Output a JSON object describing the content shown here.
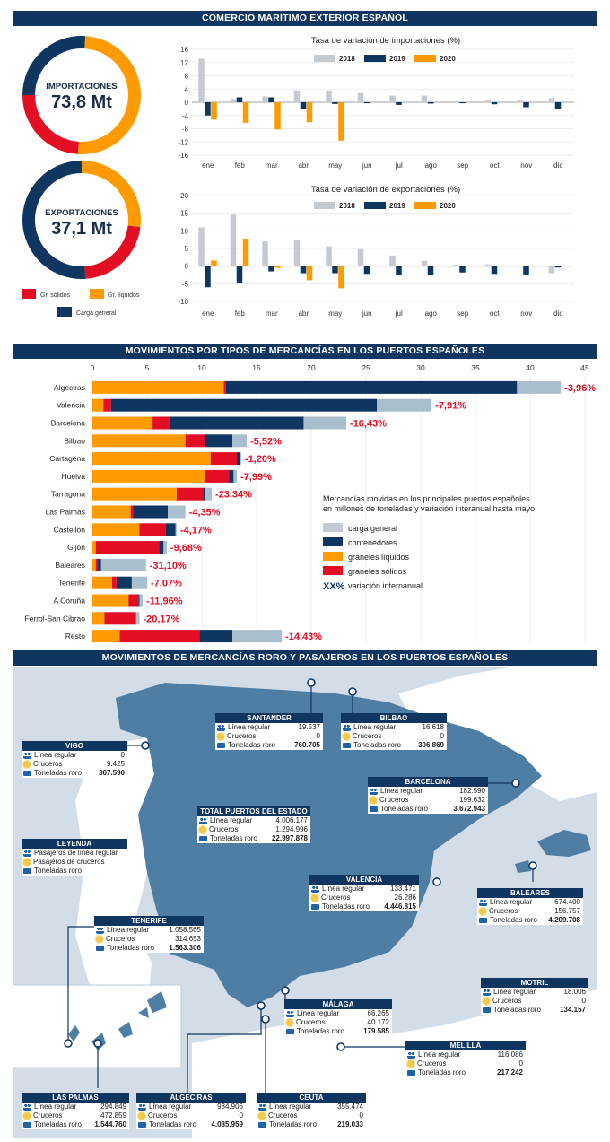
{
  "sections": {
    "top": "COMERCIO MARÍTIMO EXTERIOR ESPAÑOL",
    "middle": "MOVIMIENTOS POR TIPOS DE MERCANCÍAS EN LOS PUERTOS ESPAÑOLES",
    "bottom": "MOVIMIENTOS DE MERCANCÍAS RORO Y PASAJEROS EN LOS PUERTOS ESPAÑOLES"
  },
  "colors": {
    "navy": "#0f3561",
    "red": "#e30e24",
    "orange": "#ff9a00",
    "grey": "#c5cad0",
    "lightblue": "#a9bfce",
    "land": "#4e7ea4",
    "sea": "#d2dde7"
  },
  "donuts": {
    "legend": [
      "Gr. sólidos",
      "Gr. líquidos",
      "Carga general"
    ],
    "importaciones": {
      "label": "IMPORTACIONES",
      "value": "73,8 Mt"
    },
    "exportaciones": {
      "label": "EXPORTACIONES",
      "value": "37,1 Mt"
    }
  },
  "chart_data": [
    {
      "type": "pie",
      "title": "IMPORTACIONES 73,8 Mt",
      "categories": [
        "Gr. sólidos",
        "Gr. líquidos",
        "Carga general"
      ],
      "values": [
        24,
        50,
        26
      ]
    },
    {
      "type": "pie",
      "title": "EXPORTACIONES 37,1 Mt",
      "categories": [
        "Gr. sólidos",
        "Gr. líquidos",
        "Carga general"
      ],
      "values": [
        22,
        27,
        51
      ]
    },
    {
      "type": "bar",
      "title": "Tasa de variación de importaciones (%)",
      "categories": [
        "ene",
        "feb",
        "mar",
        "abr",
        "may",
        "jun",
        "jul",
        "ago",
        "sep",
        "oct",
        "nov",
        "dic"
      ],
      "yticks": [
        "16",
        "12",
        "8",
        "4",
        "0",
        "-4",
        "-8",
        "-12",
        "-16"
      ],
      "ylim": [
        -16,
        16
      ],
      "series": [
        {
          "name": "2018",
          "values": [
            13.2,
            1.0,
            1.8,
            3.6,
            3.6,
            2.8,
            2.0,
            2.0,
            0.3,
            0.8,
            0.5,
            1.2
          ]
        },
        {
          "name": "2019",
          "values": [
            -4.0,
            1.5,
            1.5,
            -2.0,
            -0.5,
            -0.3,
            -0.8,
            -0.4,
            -0.3,
            -0.6,
            -1.5,
            -2.0
          ]
        },
        {
          "name": "2020",
          "values": [
            -5.2,
            -6.2,
            -8.2,
            -6.0,
            -11.6,
            null,
            null,
            null,
            null,
            null,
            null,
            null
          ]
        }
      ]
    },
    {
      "type": "bar",
      "title": "Tasa de variación de exportaciones (%)",
      "categories": [
        "ene",
        "feb",
        "mar",
        "abr",
        "may",
        "jun",
        "jul",
        "ago",
        "sep",
        "oct",
        "nov",
        "dic"
      ],
      "yticks": [
        "20",
        "15",
        "10",
        "5",
        "0",
        "-5",
        "-10"
      ],
      "ylim": [
        -10,
        20
      ],
      "series": [
        {
          "name": "2018",
          "values": [
            11.0,
            14.6,
            7.0,
            7.5,
            5.6,
            4.8,
            3.0,
            1.5,
            0.4,
            0.5,
            0.0,
            -2.0
          ]
        },
        {
          "name": "2019",
          "values": [
            -6.0,
            -4.7,
            -1.5,
            -2.0,
            -2.0,
            -2.2,
            -2.5,
            -2.5,
            -1.8,
            -2.2,
            -2.5,
            -0.4
          ]
        },
        {
          "name": "2020",
          "values": [
            1.6,
            7.8,
            -0.5,
            -4.0,
            -6.3,
            null,
            null,
            null,
            null,
            null,
            null,
            null
          ]
        }
      ]
    },
    {
      "type": "bar",
      "orientation": "horizontal",
      "stacked": true,
      "categories": [
        "Algeciras",
        "Valencia",
        "Barcelona",
        "Bilbao",
        "Cartagena",
        "Huelva",
        "Tarragona",
        "Las Palmas",
        "Castellón",
        "Gijón",
        "Baleares",
        "Tenerife",
        "A Coruña",
        "Ferrol-San Cibrao",
        "Resto"
      ],
      "xticks": [
        "0",
        "5",
        "10",
        "15",
        "20",
        "25",
        "30",
        "35",
        "40",
        "45"
      ],
      "xlim": [
        0,
        45
      ],
      "series": [
        {
          "name": "graneles líquidos",
          "values": [
            12.0,
            1.0,
            5.5,
            8.5,
            10.8,
            10.3,
            7.7,
            3.5,
            4.3,
            0.3,
            0.3,
            1.8,
            3.3,
            1.1,
            2.5
          ]
        },
        {
          "name": "graneles sólidos",
          "values": [
            0.2,
            0.7,
            1.6,
            1.8,
            2.4,
            2.2,
            2.4,
            0.2,
            2.4,
            5.8,
            0.2,
            0.4,
            0.9,
            2.9,
            7.3
          ]
        },
        {
          "name": "contenedores",
          "values": [
            26.6,
            24.3,
            12.2,
            2.5,
            0.3,
            0.4,
            0.2,
            3.2,
            0.9,
            0.4,
            0.3,
            1.4,
            0.1,
            0.0,
            3.0
          ]
        },
        {
          "name": "carga general",
          "values": [
            4.0,
            5.0,
            3.9,
            1.3,
            0.1,
            0.3,
            0.6,
            1.6,
            0.1,
            0.3,
            4.1,
            1.4,
            0.3,
            0.3,
            4.5
          ]
        }
      ],
      "variation_labels": [
        "-3,96%",
        "-7,91%",
        "-16,43%",
        "-5,52%",
        "-1,20%",
        "-7,99%",
        "-23,34%",
        "-4,35%",
        "-4,17%",
        "-9,68%",
        "-31,10%",
        "-7,07%",
        "-11,96%",
        "-20,17%",
        "-14,43%"
      ],
      "legend": {
        "description": "Mercancías movidas en los principales puertos españoles en millones de toneladas y variación interanual hasta mayo",
        "items": [
          "carga general",
          "contenedores",
          "graneles líquidos",
          "graneles sólidos"
        ],
        "xx_mark": "XX%",
        "xx_label": "variación internanual"
      }
    }
  ],
  "map": {
    "row_labels": [
      "Línea regular",
      "Cruceros",
      "Toneladas roro"
    ],
    "legend": {
      "title": "LEYENDA",
      "rows": [
        "Pasajeros de línea regular",
        "Pasajeros de cruceros",
        "Toneladas roro"
      ]
    },
    "ports": [
      {
        "name": "VIGO",
        "linea": "0",
        "cruceros": "9.425",
        "roro": "307.590"
      },
      {
        "name": "SANTANDER",
        "linea": "19.537",
        "cruceros": "0",
        "roro": "760.705"
      },
      {
        "name": "BILBAO",
        "linea": "16.618",
        "cruceros": "0",
        "roro": "306.869"
      },
      {
        "name": "BARCELONA",
        "linea": "182.590",
        "cruceros": "199.632",
        "roro": "3.672.943"
      },
      {
        "name": "TOTAL PUERTOS DEL ESTADO",
        "linea": "4.006.177",
        "cruceros": "1.294.996",
        "roro": "22.997.878"
      },
      {
        "name": "VALENCIA",
        "linea": "133.471",
        "cruceros": "26.286",
        "roro": "4.446.815"
      },
      {
        "name": "BALEARES",
        "linea": "674.400",
        "cruceros": "156.757",
        "roro": "4.209.708"
      },
      {
        "name": "TENERIFE",
        "linea": "1.058.565",
        "cruceros": "314.653",
        "roro": "1.563.306"
      },
      {
        "name": "MOTRIL",
        "linea": "18.006",
        "cruceros": "0",
        "roro": "134.157"
      },
      {
        "name": "MÁLAGA",
        "linea": "66.265",
        "cruceros": "40.172",
        "roro": "179.585"
      },
      {
        "name": "MELILLA",
        "linea": "116.086",
        "cruceros": "0",
        "roro": "217.242"
      },
      {
        "name": "LAS PALMAS",
        "linea": "294.849",
        "cruceros": "472.859",
        "roro": "1.544.760"
      },
      {
        "name": "ALGECIRAS",
        "linea": "934.906",
        "cruceros": "0",
        "roro": "4.085.959"
      },
      {
        "name": "CEUTA",
        "linea": "355.474",
        "cruceros": "0",
        "roro": "219.033"
      }
    ]
  }
}
